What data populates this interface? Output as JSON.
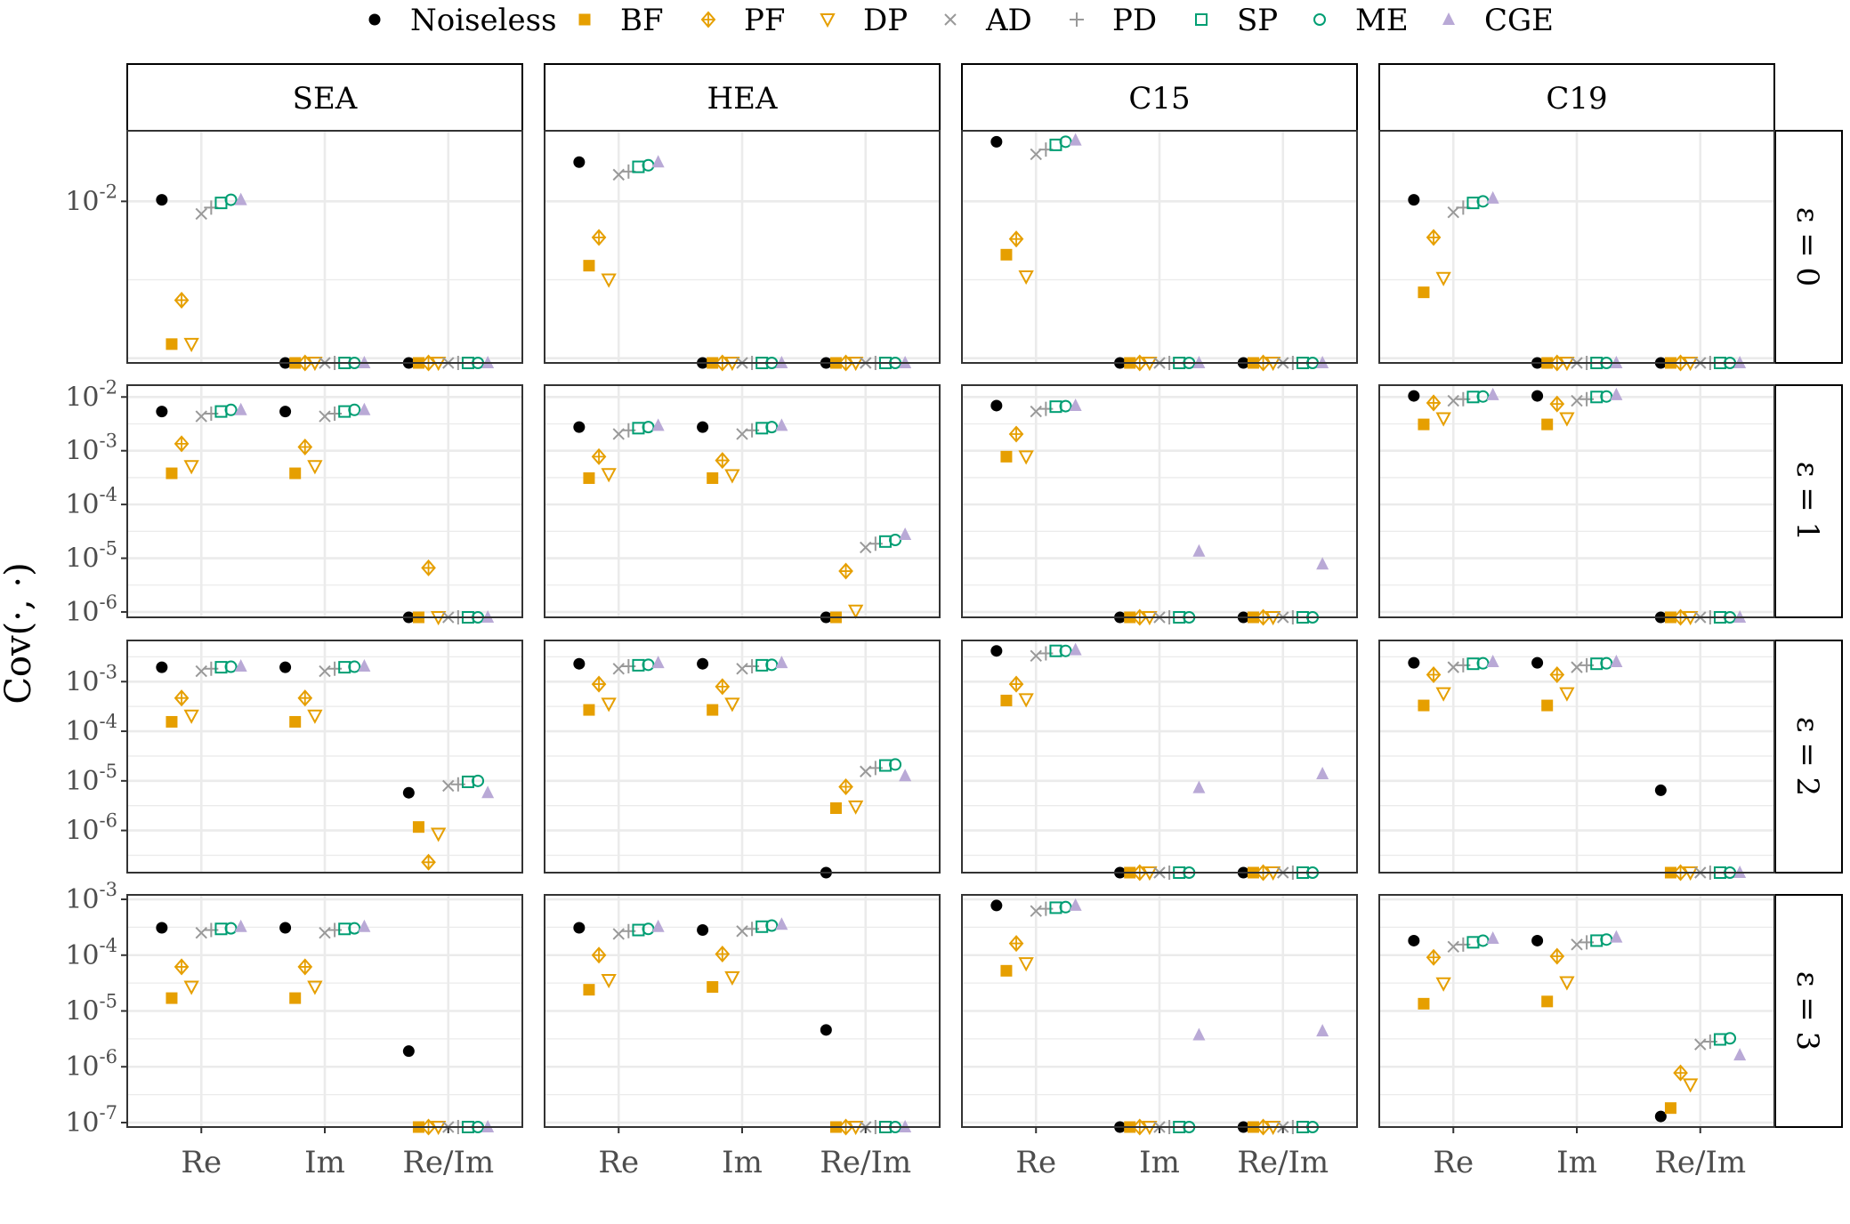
{
  "chart_data": {
    "type": "scatter",
    "y_scale": "log10",
    "ylabel": "Cov(·, ·)",
    "xlabel": "",
    "categories": [
      "Re",
      "Im",
      "Re/Im"
    ],
    "columns": [
      "SEA",
      "HEA",
      "C15",
      "C19"
    ],
    "rows": [
      "ε = 0",
      "ε = 1",
      "ε = 2",
      "ε = 3"
    ],
    "legend_position": "top",
    "grid": true,
    "note": "values are log10(Cov); null = at or below the lower axis limit",
    "series": [
      {
        "name": "Noiseless",
        "shape": "filled-circle",
        "color": "#000000"
      },
      {
        "name": "BF",
        "shape": "filled-square",
        "color": "#E69F00"
      },
      {
        "name": "PF",
        "shape": "diamond-plus",
        "color": "#E69F00"
      },
      {
        "name": "DP",
        "shape": "open-triangle-down",
        "color": "#E69F00"
      },
      {
        "name": "AD",
        "shape": "cross",
        "color": "#999999"
      },
      {
        "name": "PD",
        "shape": "plus",
        "color": "#999999"
      },
      {
        "name": "SP",
        "shape": "open-square",
        "color": "#009E73"
      },
      {
        "name": "ME",
        "shape": "open-circle",
        "color": "#009E73"
      },
      {
        "name": "CGE",
        "shape": "filled-triangle",
        "color": "#B9A9D6"
      }
    ],
    "row_axes": [
      {
        "ylim_log10": [
          -3.03,
          -1.55
        ],
        "ticks_log10": [
          -2
        ]
      },
      {
        "ylim_log10": [
          -6.1,
          -1.78
        ],
        "ticks_log10": [
          -2,
          -3,
          -4,
          -5,
          -6
        ]
      },
      {
        "ylim_log10": [
          -6.85,
          -2.17
        ],
        "ticks_log10": [
          -3,
          -4,
          -5,
          -6
        ]
      },
      {
        "ylim_log10": [
          -7.08,
          -2.92
        ],
        "ticks_log10": [
          -3,
          -4,
          -5,
          -6,
          -7
        ]
      }
    ],
    "panels": [
      [
        {
          "re": [
            -1.99,
            -2.91,
            -2.63,
            -2.91,
            -2.08,
            -2.04,
            -2.01,
            -1.99,
            -1.99
          ],
          "im": [
            null,
            null,
            null,
            null,
            null,
            null,
            null,
            null,
            null
          ],
          "reim": [
            null,
            null,
            null,
            null,
            null,
            null,
            null,
            null,
            null
          ]
        },
        {
          "re": [
            -1.75,
            -2.41,
            -2.23,
            -2.5,
            -1.83,
            -1.81,
            -1.78,
            -1.77,
            -1.75
          ],
          "im": [
            null,
            null,
            null,
            null,
            null,
            null,
            null,
            null,
            null
          ],
          "reim": [
            null,
            null,
            null,
            null,
            null,
            null,
            null,
            null,
            null
          ]
        },
        {
          "re": [
            -1.62,
            -2.34,
            -2.24,
            -2.48,
            -1.7,
            -1.67,
            -1.64,
            -1.62,
            -1.61
          ],
          "im": [
            null,
            null,
            null,
            null,
            null,
            null,
            null,
            null,
            null
          ],
          "reim": [
            null,
            null,
            null,
            null,
            null,
            null,
            null,
            null,
            null
          ]
        },
        {
          "re": [
            -1.99,
            -2.58,
            -2.23,
            -2.49,
            -2.07,
            -2.04,
            -2.01,
            -2.0,
            -1.98
          ],
          "im": [
            null,
            null,
            null,
            null,
            null,
            null,
            null,
            null,
            null
          ],
          "reim": [
            null,
            null,
            null,
            null,
            null,
            null,
            null,
            null,
            null
          ]
        }
      ],
      [
        {
          "re": [
            -2.27,
            -3.42,
            -2.87,
            -3.29,
            -2.36,
            -2.31,
            -2.27,
            -2.24,
            -2.24
          ],
          "im": [
            -2.27,
            -3.42,
            -2.93,
            -3.29,
            -2.36,
            -2.31,
            -2.27,
            -2.24,
            -2.24
          ],
          "reim": [
            null,
            null,
            -5.18,
            null,
            null,
            null,
            null,
            null,
            null
          ]
        },
        {
          "re": [
            -2.56,
            -3.51,
            -3.11,
            -3.44,
            -2.69,
            -2.62,
            -2.58,
            -2.56,
            -2.53
          ],
          "im": [
            -2.56,
            -3.51,
            -3.18,
            -3.46,
            -2.69,
            -2.62,
            -2.58,
            -2.56,
            -2.53
          ],
          "reim": [
            null,
            null,
            -5.24,
            -5.98,
            -4.8,
            -4.73,
            -4.69,
            -4.66,
            -4.56
          ]
        },
        {
          "re": [
            -2.16,
            -3.11,
            -2.69,
            -3.11,
            -2.27,
            -2.22,
            -2.18,
            -2.17,
            -2.16
          ],
          "im": [
            null,
            null,
            null,
            null,
            null,
            null,
            null,
            null,
            -4.87
          ],
          "reim": [
            null,
            null,
            null,
            null,
            null,
            null,
            null,
            null,
            -5.11
          ]
        },
        {
          "re": [
            -1.98,
            -2.51,
            -2.11,
            -2.4,
            -2.07,
            -2.04,
            -2.0,
            -1.99,
            -1.96
          ],
          "im": [
            -1.98,
            -2.51,
            -2.13,
            -2.4,
            -2.07,
            -2.04,
            -2.0,
            -1.99,
            -1.96
          ],
          "reim": [
            null,
            null,
            null,
            null,
            null,
            null,
            null,
            null,
            null
          ]
        }
      ],
      [
        {
          "re": [
            -2.71,
            -3.81,
            -3.33,
            -3.69,
            -2.79,
            -2.74,
            -2.71,
            -2.7,
            -2.69
          ],
          "im": [
            -2.71,
            -3.81,
            -3.33,
            -3.69,
            -2.79,
            -2.74,
            -2.71,
            -2.7,
            -2.69
          ],
          "reim": [
            -5.24,
            -5.93,
            -6.64,
            -6.07,
            -5.1,
            -5.07,
            -5.02,
            -5.0,
            -5.24
          ]
        },
        {
          "re": [
            -2.64,
            -3.57,
            -3.05,
            -3.45,
            -2.74,
            -2.69,
            -2.67,
            -2.66,
            -2.62
          ],
          "im": [
            -2.64,
            -3.57,
            -3.1,
            -3.45,
            -2.74,
            -2.69,
            -2.67,
            -2.66,
            -2.62
          ],
          "reim": [
            null,
            -5.55,
            -5.12,
            -5.52,
            -4.81,
            -4.74,
            -4.69,
            -4.67,
            -4.9
          ]
        },
        {
          "re": [
            -2.38,
            -3.38,
            -3.05,
            -3.36,
            -2.48,
            -2.43,
            -2.38,
            -2.38,
            -2.36
          ],
          "im": [
            null,
            null,
            null,
            null,
            null,
            null,
            null,
            null,
            -5.14
          ],
          "reim": [
            null,
            null,
            null,
            null,
            null,
            null,
            null,
            null,
            -4.86
          ]
        },
        {
          "re": [
            -2.62,
            -3.48,
            -2.86,
            -3.24,
            -2.71,
            -2.67,
            -2.64,
            -2.63,
            -2.6
          ],
          "im": [
            -2.62,
            -3.48,
            -2.86,
            -3.24,
            -2.71,
            -2.67,
            -2.64,
            -2.63,
            -2.6
          ],
          "reim": [
            -5.19,
            null,
            null,
            null,
            null,
            null,
            null,
            null,
            null
          ]
        }
      ],
      [
        {
          "re": [
            -3.51,
            -4.77,
            -4.21,
            -4.57,
            -3.6,
            -3.55,
            -3.53,
            -3.52,
            -3.49
          ],
          "im": [
            -3.51,
            -4.77,
            -4.21,
            -4.57,
            -3.6,
            -3.55,
            -3.53,
            -3.52,
            -3.49
          ],
          "reim": [
            -5.72,
            null,
            null,
            null,
            null,
            null,
            null,
            null,
            null
          ]
        },
        {
          "re": [
            -3.51,
            -4.62,
            -4.0,
            -4.45,
            -3.62,
            -3.57,
            -3.55,
            -3.53,
            -3.49
          ],
          "im": [
            -3.55,
            -4.57,
            -3.98,
            -4.4,
            -3.57,
            -3.53,
            -3.49,
            -3.47,
            -3.45
          ],
          "reim": [
            -5.34,
            null,
            null,
            null,
            null,
            null,
            null,
            null,
            null
          ]
        },
        {
          "re": [
            -3.11,
            -4.28,
            -3.79,
            -4.15,
            -3.21,
            -3.17,
            -3.15,
            -3.14,
            -3.11
          ],
          "im": [
            null,
            null,
            null,
            null,
            null,
            null,
            null,
            null,
            -5.43
          ],
          "reim": [
            null,
            null,
            null,
            null,
            null,
            null,
            null,
            null,
            -5.36
          ]
        },
        {
          "re": [
            -3.74,
            -4.87,
            -4.04,
            -4.51,
            -3.85,
            -3.81,
            -3.77,
            -3.74,
            -3.7
          ],
          "im": [
            -3.74,
            -4.83,
            -4.02,
            -4.49,
            -3.81,
            -3.77,
            -3.74,
            -3.72,
            -3.68
          ],
          "reim": [
            -6.89,
            -6.74,
            -6.11,
            -6.32,
            -5.6,
            -5.55,
            -5.51,
            -5.49,
            -5.79
          ]
        }
      ]
    ]
  }
}
